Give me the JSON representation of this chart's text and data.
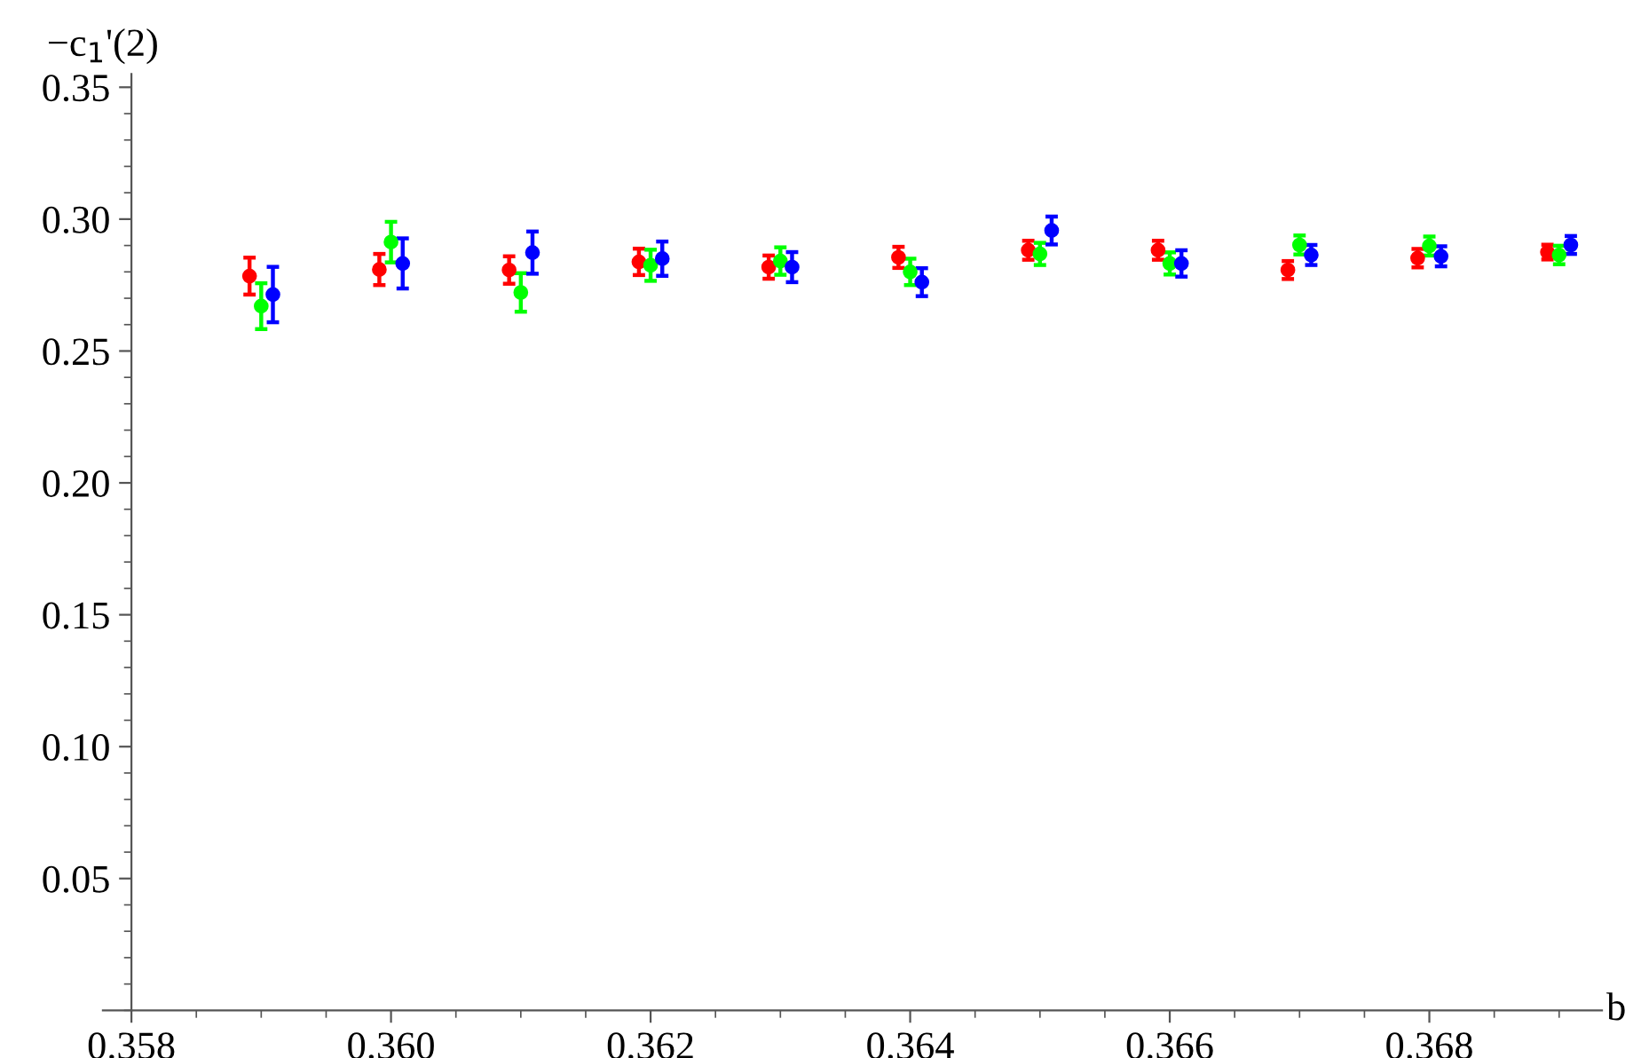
{
  "chart_data": {
    "type": "scatter",
    "xlabel": "b",
    "ylabel": "−c$_{1}$'(2)",
    "xlim": [
      0.35778,
      0.36933
    ],
    "ylim": [
      0,
      0.355
    ],
    "xticks": [
      0.358,
      {
        "value": 0.36,
        "label": "0.360"
      },
      0.362,
      0.364,
      0.366,
      0.368
    ],
    "yticks": [
      0.05,
      {
        "value": 0.1,
        "label": "0.10"
      },
      0.15,
      {
        "value": 0.2,
        "label": "0.20"
      },
      0.25,
      {
        "value": 0.3,
        "label": "0.30"
      },
      0.35
    ],
    "grid": false,
    "legend": false,
    "marker": "circle",
    "series": [
      {
        "color": "#ff0000",
        "x": [
          0.35891,
          0.35991,
          0.36091,
          0.36191,
          0.36291,
          0.36391,
          0.36491,
          0.36591,
          0.36691,
          0.36791,
          0.36891
        ],
        "values": [
          0.2784,
          0.2809,
          0.2807,
          0.2838,
          0.2818,
          0.2855,
          0.2882,
          0.2882,
          0.2807,
          0.2852,
          0.2875
        ],
        "errors": [
          0.007,
          0.0059,
          0.0052,
          0.005,
          0.0044,
          0.004,
          0.0036,
          0.0036,
          0.0034,
          0.0035,
          0.0028
        ]
      },
      {
        "color": "#00ff00",
        "x": [
          0.359,
          0.36,
          0.361,
          0.362,
          0.363,
          0.364,
          0.365,
          0.366,
          0.367,
          0.368,
          0.369
        ],
        "values": [
          0.267,
          0.2913,
          0.2722,
          0.2825,
          0.2841,
          0.28,
          0.2868,
          0.2832,
          0.2902,
          0.2898,
          0.2864
        ],
        "errors": [
          0.0087,
          0.0077,
          0.0073,
          0.0059,
          0.0052,
          0.005,
          0.0042,
          0.0042,
          0.0036,
          0.0036,
          0.0035
        ]
      },
      {
        "color": "#0000ff",
        "x": [
          0.35909,
          0.36009,
          0.36109,
          0.36209,
          0.36309,
          0.36409,
          0.36509,
          0.36609,
          0.36709,
          0.36809,
          0.36909
        ],
        "values": [
          0.2714,
          0.2832,
          0.2873,
          0.285,
          0.2818,
          0.2761,
          0.2957,
          0.2832,
          0.2864,
          0.2859,
          0.2902
        ],
        "errors": [
          0.0105,
          0.0095,
          0.008,
          0.0065,
          0.0057,
          0.0053,
          0.0053,
          0.005,
          0.0038,
          0.0038,
          0.0034
        ]
      }
    ]
  }
}
